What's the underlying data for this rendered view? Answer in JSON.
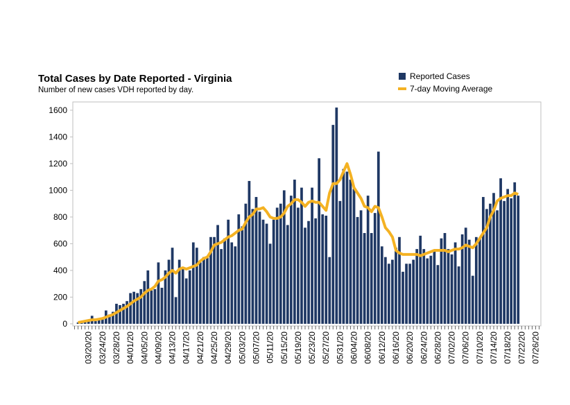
{
  "chart_data": {
    "type": "bar",
    "title": "Total Cases by Date Reported - Virginia",
    "subtitle": "Number of new cases VDH reported by day.",
    "categories": [
      null,
      null,
      null,
      null,
      "03/20/20",
      null,
      null,
      null,
      "03/24/20",
      null,
      null,
      null,
      "03/28/20",
      null,
      null,
      null,
      "04/01/20",
      null,
      null,
      null,
      "04/05/20",
      null,
      null,
      null,
      "04/09/20",
      null,
      null,
      null,
      "04/13/20",
      null,
      null,
      null,
      "04/17/20",
      null,
      null,
      null,
      "04/21/20",
      null,
      null,
      null,
      "04/25/20",
      null,
      null,
      null,
      "04/29/20",
      null,
      null,
      null,
      "05/03/20",
      null,
      null,
      null,
      "05/07/20",
      null,
      null,
      null,
      "05/11/20",
      null,
      null,
      null,
      "05/15/20",
      null,
      null,
      null,
      "05/19/20",
      null,
      null,
      null,
      "05/23/20",
      null,
      null,
      null,
      "05/27/20",
      null,
      null,
      null,
      "05/31/20",
      null,
      null,
      null,
      "06/04/20",
      null,
      null,
      null,
      "06/08/20",
      null,
      null,
      null,
      "06/12/20",
      null,
      null,
      null,
      "06/16/20",
      null,
      null,
      null,
      "06/20/20",
      null,
      null,
      null,
      "06/24/20",
      null,
      null,
      null,
      "06/28/20",
      null,
      null,
      null,
      "07/02/20",
      null,
      null,
      null,
      "07/06/20",
      null,
      null,
      null,
      "07/10/20",
      null,
      null,
      null,
      "07/14/20",
      null,
      null,
      null,
      "07/18/20",
      null,
      null,
      null,
      "07/22/20",
      null,
      null,
      null,
      "07/26/20",
      null
    ],
    "series": [
      {
        "name": "Reported Cases",
        "color": "#1f3864",
        "type": "bar",
        "values": [
          null,
          10,
          10,
          20,
          30,
          60,
          20,
          40,
          40,
          100,
          70,
          90,
          150,
          140,
          150,
          170,
          230,
          240,
          230,
          260,
          320,
          400,
          250,
          260,
          460,
          270,
          400,
          480,
          570,
          200,
          480,
          420,
          340,
          400,
          610,
          570,
          460,
          500,
          500,
          650,
          650,
          740,
          560,
          640,
          780,
          610,
          580,
          820,
          730,
          900,
          1070,
          860,
          950,
          840,
          780,
          750,
          600,
          780,
          870,
          900,
          1000,
          740,
          960,
          1080,
          870,
          1020,
          720,
          770,
          1020,
          790,
          1240,
          820,
          810,
          500,
          1490,
          1620,
          920,
          1160,
          1140,
          1080,
          1010,
          800,
          850,
          680,
          960,
          680,
          830,
          1290,
          580,
          500,
          450,
          480,
          570,
          650,
          390,
          450,
          450,
          480,
          560,
          660,
          560,
          490,
          510,
          540,
          440,
          640,
          680,
          560,
          520,
          610,
          430,
          670,
          720,
          630,
          360,
          650,
          640,
          950,
          860,
          900,
          980,
          850,
          1090,
          920,
          1010,
          940,
          1060,
          960,
          null,
          null,
          null,
          null,
          null,
          null
        ]
      },
      {
        "name": "7-day Moving Average",
        "color": "#f4b223",
        "type": "line",
        "values": [
          null,
          10,
          15,
          20,
          25,
          30,
          30,
          35,
          40,
          50,
          60,
          70,
          85,
          100,
          115,
          130,
          150,
          170,
          185,
          200,
          230,
          250,
          260,
          280,
          320,
          330,
          350,
          380,
          400,
          380,
          410,
          420,
          410,
          420,
          430,
          440,
          470,
          490,
          500,
          540,
          590,
          600,
          610,
          630,
          650,
          660,
          680,
          700,
          710,
          760,
          800,
          820,
          860,
          860,
          870,
          840,
          800,
          790,
          790,
          800,
          830,
          880,
          900,
          930,
          930,
          910,
          880,
          910,
          920,
          910,
          910,
          880,
          850,
          980,
          1050,
          1050,
          1080,
          1140,
          1200,
          1120,
          1020,
          980,
          940,
          880,
          870,
          840,
          880,
          870,
          800,
          720,
          690,
          650,
          550,
          530,
          520,
          520,
          520,
          520,
          520,
          510,
          520,
          530,
          540,
          550,
          550,
          550,
          550,
          540,
          550,
          560,
          560,
          570,
          590,
          580,
          570,
          600,
          640,
          680,
          720,
          800,
          850,
          920,
          940,
          950,
          960,
          960,
          980,
          970,
          null,
          null,
          null,
          null,
          null,
          null
        ]
      }
    ],
    "ylim": [
      -16,
      1662
    ],
    "yticks": [
      0,
      200,
      400,
      600,
      800,
      1000,
      1200,
      1400,
      1600
    ],
    "legend": "top-right"
  }
}
